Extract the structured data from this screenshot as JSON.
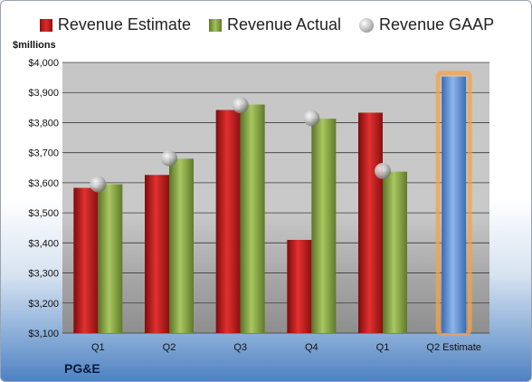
{
  "chart_data": {
    "type": "bar",
    "categories": [
      "Q1",
      "Q2",
      "Q3",
      "Q4",
      "Q1",
      "Q2 Estimate"
    ],
    "series": [
      {
        "name": "Revenue Estimate",
        "values": [
          3583,
          3626,
          3842,
          3410,
          3833,
          null
        ]
      },
      {
        "name": "Revenue Actual",
        "values": [
          3595,
          3680,
          3860,
          3813,
          3637,
          null
        ]
      },
      {
        "name": "Revenue GAAP",
        "values": [
          3595,
          3682,
          3858,
          3815,
          3639,
          null
        ]
      },
      {
        "name": "Q2 Estimate",
        "values": [
          null,
          null,
          null,
          null,
          null,
          3953
        ]
      }
    ],
    "ylabel": "$millions",
    "ylim": [
      3100,
      4000
    ],
    "yticks": [
      3100,
      3200,
      3300,
      3400,
      3500,
      3600,
      3700,
      3800,
      3900,
      4000
    ],
    "ytick_labels": [
      "$3,100",
      "$3,200",
      "$3,300",
      "$3,400",
      "$3,500",
      "$3,600",
      "$3,700",
      "$3,800",
      "$3,900",
      "$4,000"
    ],
    "legend_position": "top",
    "grid": true
  },
  "legend": {
    "estimate": "Revenue Estimate",
    "actual": "Revenue Actual",
    "gaap": "Revenue GAAP"
  },
  "units_label": "$millions",
  "company": "PG&E",
  "colors": {
    "estimate": "#c41e1e",
    "actual": "#8cab47",
    "gaap": "#b0b0b0",
    "forecast": "#5b8fd6",
    "forecast_glow": "#f5a24a"
  }
}
